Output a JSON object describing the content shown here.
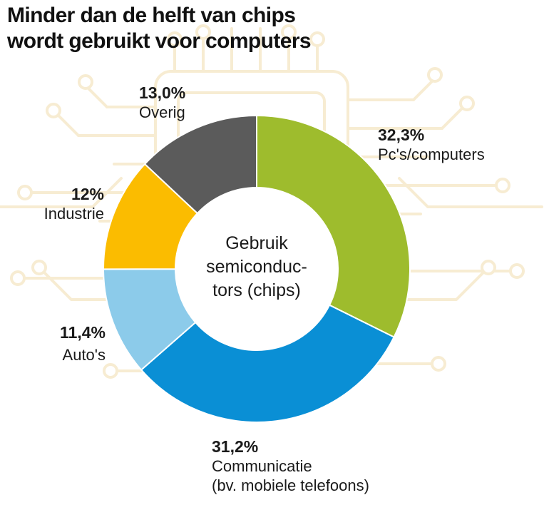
{
  "title_lines": [
    "Minder dan de helft van chips",
    "wordt gebruikt voor computers"
  ],
  "center_lines": [
    "Gebruik",
    "semiconduc-",
    "tors (chips)"
  ],
  "chart_data": {
    "type": "pie",
    "title": "Minder dan de helft van chips wordt gebruikt voor computers",
    "donut": true,
    "slices": [
      {
        "value": 32.3,
        "value_label": "32,3%",
        "name_lines": [
          "Pc's/computers"
        ],
        "color": "#9ebc2d"
      },
      {
        "value": 31.2,
        "value_label": "31,2%",
        "name_lines": [
          "Communicatie",
          "(bv. mobiele telefoons)"
        ],
        "color": "#0a8fd5"
      },
      {
        "value": 11.4,
        "value_label": "11,4%",
        "name_lines": [
          "Auto's"
        ],
        "color": "#8ccbea"
      },
      {
        "value": 12.0,
        "value_label": "12%",
        "name_lines": [
          "Industrie"
        ],
        "color": "#fbbc00"
      },
      {
        "value": 13.0,
        "value_label": "13,0%",
        "name_lines": [
          "Overig"
        ],
        "color": "#5b5b5b"
      }
    ]
  },
  "colors": {
    "background_motif": "#f7ecd2",
    "slice_border": "#ffffff"
  }
}
